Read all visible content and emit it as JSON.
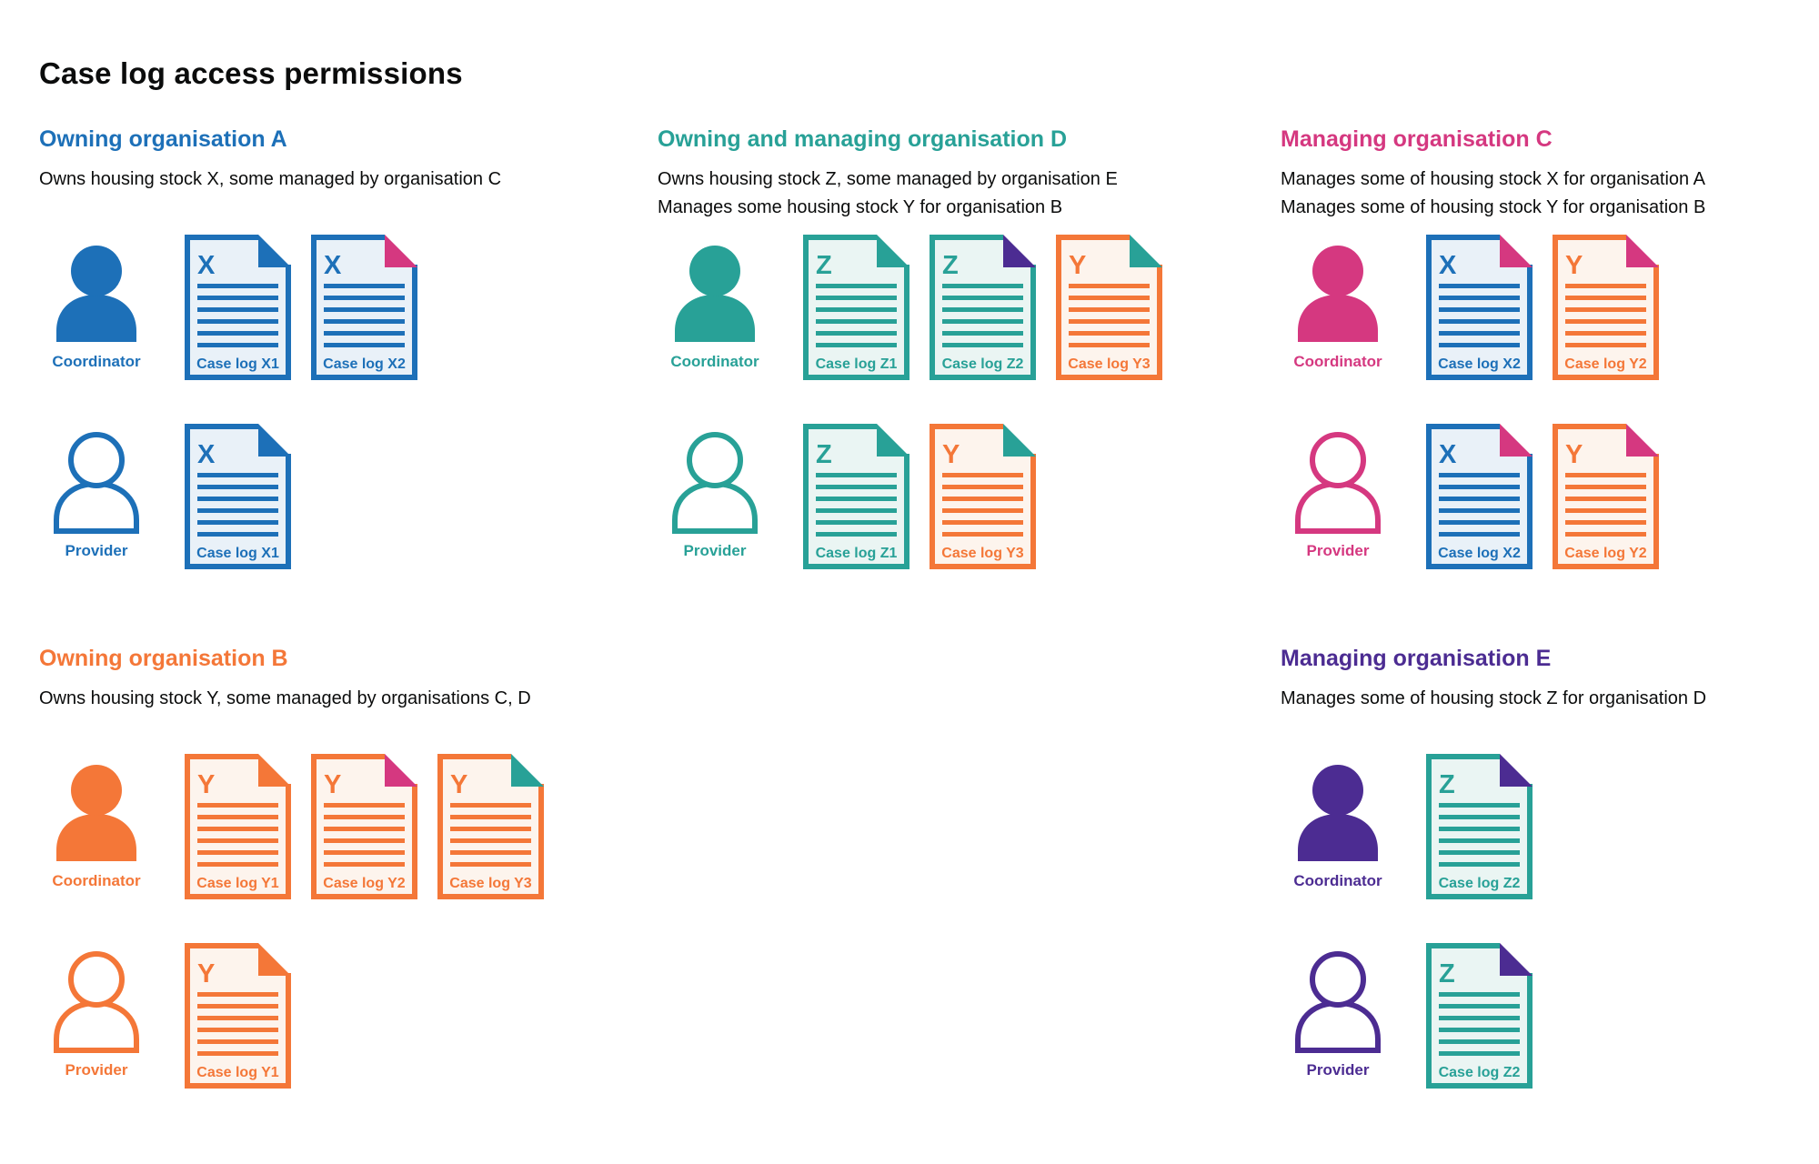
{
  "page_title": "Case log access permissions",
  "labels": {
    "coordinator": "Coordinator",
    "provider": "Provider"
  },
  "colors": {
    "blue": {
      "main": "#1d70b8",
      "bg": "#e9f1f8"
    },
    "teal": {
      "main": "#28a197",
      "bg": "#eaf5f3"
    },
    "pink": {
      "main": "#d53880",
      "bg": "#fbeaf1"
    },
    "orange": {
      "main": "#f47738",
      "bg": "#fdf4ed"
    },
    "purple": {
      "main": "#4c2c92",
      "bg": "#ece8f3"
    }
  },
  "organisations": [
    {
      "id": "a",
      "title": "Owning organisation A",
      "color": "blue",
      "grid": {
        "column": 1,
        "row": 1
      },
      "description_lines": [
        "Owns housing stock X, some managed by organisation C"
      ],
      "coordinator_docs": [
        {
          "letter": "X",
          "label": "Case log X1",
          "doc_color": "blue",
          "fold_color": "blue"
        },
        {
          "letter": "X",
          "label": "Case log X2",
          "doc_color": "blue",
          "fold_color": "pink"
        }
      ],
      "provider_docs": [
        {
          "letter": "X",
          "label": "Case log X1",
          "doc_color": "blue",
          "fold_color": "blue"
        }
      ]
    },
    {
      "id": "d",
      "title": "Owning and managing organisation D",
      "color": "teal",
      "grid": {
        "column": 2,
        "row": 1
      },
      "description_lines": [
        "Owns housing stock Z, some managed by organisation E",
        "Manages some housing stock Y for organisation B"
      ],
      "coordinator_docs": [
        {
          "letter": "Z",
          "label": "Case log Z1",
          "doc_color": "teal",
          "fold_color": "teal"
        },
        {
          "letter": "Z",
          "label": "Case log Z2",
          "doc_color": "teal",
          "fold_color": "purple"
        },
        {
          "letter": "Y",
          "label": "Case log Y3",
          "doc_color": "orange",
          "fold_color": "teal"
        }
      ],
      "provider_docs": [
        {
          "letter": "Z",
          "label": "Case log Z1",
          "doc_color": "teal",
          "fold_color": "teal"
        },
        {
          "letter": "Y",
          "label": "Case log Y3",
          "doc_color": "orange",
          "fold_color": "teal"
        }
      ]
    },
    {
      "id": "c",
      "title": "Managing organisation C",
      "color": "pink",
      "grid": {
        "column": 3,
        "row": 1
      },
      "description_lines": [
        "Manages some of housing stock X for organisation A",
        "Manages some of housing stock Y for organisation B"
      ],
      "coordinator_docs": [
        {
          "letter": "X",
          "label": "Case log X2",
          "doc_color": "blue",
          "fold_color": "pink"
        },
        {
          "letter": "Y",
          "label": "Case log Y2",
          "doc_color": "orange",
          "fold_color": "pink"
        }
      ],
      "provider_docs": [
        {
          "letter": "X",
          "label": "Case log X2",
          "doc_color": "blue",
          "fold_color": "pink"
        },
        {
          "letter": "Y",
          "label": "Case log Y2",
          "doc_color": "orange",
          "fold_color": "pink"
        }
      ]
    },
    {
      "id": "b",
      "title": "Owning organisation B",
      "color": "orange",
      "grid": {
        "column": 1,
        "row": 2
      },
      "description_lines": [
        "Owns housing stock Y, some managed by organisations C, D"
      ],
      "coordinator_docs": [
        {
          "letter": "Y",
          "label": "Case log Y1",
          "doc_color": "orange",
          "fold_color": "orange"
        },
        {
          "letter": "Y",
          "label": "Case log Y2",
          "doc_color": "orange",
          "fold_color": "pink"
        },
        {
          "letter": "Y",
          "label": "Case log Y3",
          "doc_color": "orange",
          "fold_color": "teal"
        }
      ],
      "provider_docs": [
        {
          "letter": "Y",
          "label": "Case log Y1",
          "doc_color": "orange",
          "fold_color": "orange"
        }
      ]
    },
    {
      "id": "e",
      "title": "Managing organisation E",
      "color": "purple",
      "grid": {
        "column": 3,
        "row": 2
      },
      "description_lines": [
        "Manages some of housing stock Z for organisation D"
      ],
      "coordinator_docs": [
        {
          "letter": "Z",
          "label": "Case log Z2",
          "doc_color": "teal",
          "fold_color": "purple"
        }
      ],
      "provider_docs": [
        {
          "letter": "Z",
          "label": "Case log Z2",
          "doc_color": "teal",
          "fold_color": "purple"
        }
      ]
    }
  ]
}
